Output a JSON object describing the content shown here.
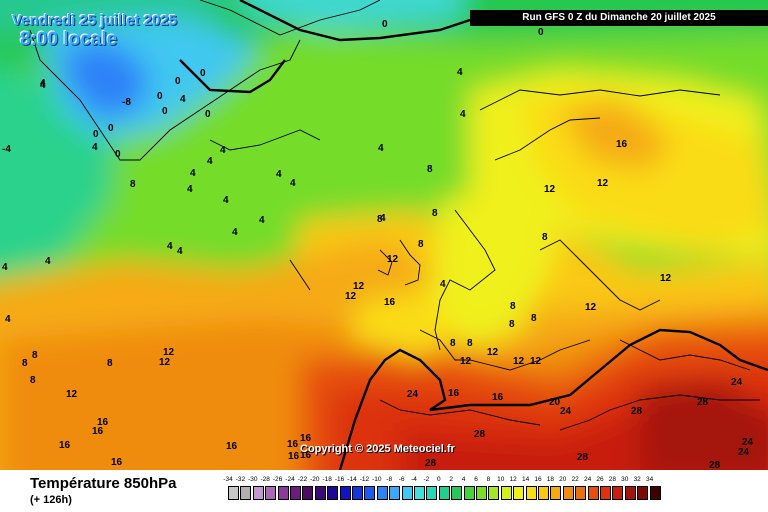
{
  "header": {
    "date_label": "Vendredi 25 juillet 2025",
    "time_label": "8:00 locale",
    "run_label": "Run GFS 0 Z du Dimanche 20 juillet 2025"
  },
  "copyright": "Copyright © 2025 Meteociel.fr",
  "footer": {
    "title": "Température 850hPa",
    "lead": "(+ 126h)"
  },
  "legend": {
    "ticks": [
      "-34",
      "-32",
      "-30",
      "-28",
      "-26",
      "-24",
      "-22",
      "-20",
      "-18",
      "-16",
      "-14",
      "-12",
      "-10",
      "-8",
      "-6",
      "-4",
      "-2",
      "0",
      "2",
      "4",
      "6",
      "8",
      "10",
      "12",
      "14",
      "16",
      "18",
      "20",
      "22",
      "24",
      "26",
      "28",
      "30",
      "32",
      "34"
    ],
    "colors": [
      "#c8c8c8",
      "#b0b0b0",
      "#c496d2",
      "#a86ab8",
      "#8a3c98",
      "#6c1c7c",
      "#4e0a64",
      "#3c0a78",
      "#1c0896",
      "#1414be",
      "#1434dc",
      "#1e5af0",
      "#2e82f8",
      "#3aa8ff",
      "#40c8f8",
      "#40e0e0",
      "#28d8b8",
      "#1ed28c",
      "#28c85a",
      "#46d23c",
      "#78dc28",
      "#a6e628",
      "#d2f01e",
      "#f0f01e",
      "#fadc14",
      "#fac814",
      "#f5aa14",
      "#f08c0f",
      "#eb6e0f",
      "#e6500f",
      "#dc320f",
      "#c81e0f",
      "#a5140a",
      "#7d0a05",
      "#410000"
    ]
  },
  "map_labels": [
    "-4",
    "-8",
    "0",
    "4",
    "8",
    "12",
    "16",
    "20",
    "24",
    "28"
  ],
  "isotherm_values": [
    {
      "v": "-4"
    },
    {
      "v": "-8"
    },
    {
      "v": "0"
    },
    {
      "v": "0"
    },
    {
      "v": "0"
    },
    {
      "v": "0"
    },
    {
      "v": "0"
    },
    {
      "v": "0"
    },
    {
      "v": "0"
    },
    {
      "v": "0"
    },
    {
      "v": "0"
    },
    {
      "v": "0"
    },
    {
      "v": "4"
    },
    {
      "v": "4"
    },
    {
      "v": "4"
    },
    {
      "v": "4"
    },
    {
      "v": "4"
    },
    {
      "v": "4"
    },
    {
      "v": "4"
    },
    {
      "v": "4"
    },
    {
      "v": "4"
    },
    {
      "v": "4"
    },
    {
      "v": "4"
    },
    {
      "v": "4"
    },
    {
      "v": "4"
    },
    {
      "v": "4"
    },
    {
      "v": "4"
    },
    {
      "v": "4"
    },
    {
      "v": "4"
    },
    {
      "v": "4"
    },
    {
      "v": "4"
    },
    {
      "v": "4"
    },
    {
      "v": "4"
    },
    {
      "v": "4"
    },
    {
      "v": "4"
    },
    {
      "v": "8"
    },
    {
      "v": "8"
    },
    {
      "v": "8"
    },
    {
      "v": "8"
    },
    {
      "v": "8"
    },
    {
      "v": "8"
    },
    {
      "v": "8"
    },
    {
      "v": "8"
    },
    {
      "v": "8"
    },
    {
      "v": "8"
    },
    {
      "v": "8"
    },
    {
      "v": "8"
    },
    {
      "v": "8"
    },
    {
      "v": "8"
    },
    {
      "v": "8"
    },
    {
      "v": "12"
    },
    {
      "v": "12"
    },
    {
      "v": "12"
    },
    {
      "v": "12"
    },
    {
      "v": "12"
    },
    {
      "v": "12"
    },
    {
      "v": "12"
    },
    {
      "v": "12"
    },
    {
      "v": "12"
    },
    {
      "v": "12"
    },
    {
      "v": "12"
    },
    {
      "v": "12"
    },
    {
      "v": "12"
    },
    {
      "v": "12"
    },
    {
      "v": "16"
    },
    {
      "v": "16"
    },
    {
      "v": "16"
    },
    {
      "v": "16"
    },
    {
      "v": "16"
    },
    {
      "v": "16"
    },
    {
      "v": "16"
    },
    {
      "v": "16"
    },
    {
      "v": "16"
    },
    {
      "v": "16"
    },
    {
      "v": "16"
    },
    {
      "v": "16"
    },
    {
      "v": "16"
    },
    {
      "v": "20"
    },
    {
      "v": "24"
    },
    {
      "v": "24"
    },
    {
      "v": "24"
    },
    {
      "v": "24"
    },
    {
      "v": "24"
    },
    {
      "v": "28"
    },
    {
      "v": "28"
    },
    {
      "v": "28"
    },
    {
      "v": "28"
    },
    {
      "v": "28"
    },
    {
      "v": "28"
    }
  ]
}
